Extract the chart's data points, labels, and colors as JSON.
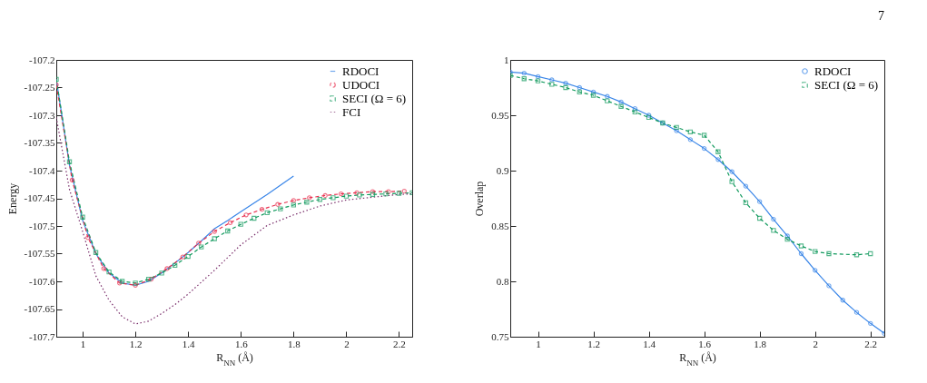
{
  "chart_data": [
    {
      "type": "line",
      "xlabel": "R$_{NN}$ (Å)",
      "ylabel": "Energy",
      "xlim": [
        0.9,
        2.25
      ],
      "ylim": [
        -107.7,
        -107.2
      ],
      "xticks": [
        1,
        1.2,
        1.4,
        1.6,
        1.8,
        2,
        2.2
      ],
      "yticks": [
        -107.7,
        -107.65,
        -107.6,
        -107.55,
        -107.5,
        -107.45,
        -107.4,
        -107.35,
        -107.3,
        -107.25,
        -107.2
      ],
      "grid": false,
      "legend": "top right",
      "series": [
        {
          "name": "RDOCI",
          "color": "#3a86e8",
          "marker": "none",
          "line_style": "solid",
          "x": [
            0.9,
            0.95,
            1.0,
            1.05,
            1.1,
            1.15,
            1.2,
            1.25,
            1.3,
            1.35,
            1.4,
            1.45,
            1.5,
            1.55,
            1.6,
            1.7,
            1.8
          ],
          "values": [
            -107.235,
            -107.39,
            -107.49,
            -107.55,
            -107.585,
            -107.603,
            -107.607,
            -107.6,
            -107.585,
            -107.567,
            -107.548,
            -107.527,
            -107.505,
            -107.49,
            -107.474,
            -107.443,
            -107.41
          ]
        },
        {
          "name": "UDOCI",
          "color": "#e8304f",
          "marker": "circle",
          "line_style": "dashed",
          "x": [
            0.9,
            0.96,
            1.02,
            1.08,
            1.14,
            1.2,
            1.26,
            1.32,
            1.38,
            1.44,
            1.5,
            1.56,
            1.62,
            1.68,
            1.74,
            1.8,
            1.86,
            1.92,
            1.98,
            2.04,
            2.1,
            2.16,
            2.22
          ],
          "values": [
            -107.245,
            -107.417,
            -107.521,
            -107.577,
            -107.603,
            -107.607,
            -107.596,
            -107.577,
            -107.556,
            -107.531,
            -107.51,
            -107.494,
            -107.48,
            -107.47,
            -107.461,
            -107.454,
            -107.449,
            -107.445,
            -107.442,
            -107.44,
            -107.438,
            -107.438,
            -107.437
          ]
        },
        {
          "name": "SECI (Ω = 6)",
          "color": "#129a5e",
          "marker": "square",
          "line_style": "dashed",
          "x": [
            0.9,
            0.95,
            1.0,
            1.05,
            1.1,
            1.15,
            1.2,
            1.25,
            1.3,
            1.35,
            1.4,
            1.45,
            1.5,
            1.55,
            1.6,
            1.65,
            1.7,
            1.75,
            1.8,
            1.85,
            1.9,
            1.95,
            2.0,
            2.05,
            2.1,
            2.15,
            2.2,
            2.25
          ],
          "values": [
            -107.235,
            -107.384,
            -107.484,
            -107.548,
            -107.583,
            -107.6,
            -107.603,
            -107.596,
            -107.585,
            -107.571,
            -107.555,
            -107.538,
            -107.523,
            -107.509,
            -107.497,
            -107.486,
            -107.476,
            -107.469,
            -107.462,
            -107.457,
            -107.452,
            -107.449,
            -107.446,
            -107.444,
            -107.443,
            -107.442,
            -107.441,
            -107.44
          ]
        },
        {
          "name": "FCI",
          "color": "#7a2e6b",
          "marker": "none",
          "line_style": "dotted",
          "x": [
            0.9,
            0.95,
            1.0,
            1.05,
            1.1,
            1.15,
            1.2,
            1.25,
            1.3,
            1.35,
            1.4,
            1.5,
            1.6,
            1.7,
            1.8,
            1.9,
            2.0,
            2.1,
            2.2,
            2.25
          ],
          "values": [
            -107.304,
            -107.434,
            -107.51,
            -107.59,
            -107.634,
            -107.664,
            -107.677,
            -107.672,
            -107.658,
            -107.642,
            -107.623,
            -107.58,
            -107.534,
            -107.499,
            -107.48,
            -107.464,
            -107.453,
            -107.448,
            -107.443,
            -107.442
          ]
        }
      ]
    },
    {
      "type": "line",
      "xlabel": "R$_{NN}$ (Å)",
      "ylabel": "Overlap",
      "xlim": [
        0.9,
        2.25
      ],
      "ylim": [
        0.75,
        1
      ],
      "xticks": [
        1,
        1.2,
        1.4,
        1.6,
        1.8,
        2,
        2.2
      ],
      "yticks": [
        0.75,
        0.8,
        0.85,
        0.9,
        0.95,
        1
      ],
      "grid": false,
      "legend": "top right",
      "annotations": [
        "7"
      ],
      "series": [
        {
          "name": "RDOCI",
          "color": "#3a86e8",
          "marker": "circle",
          "line_style": "solid",
          "x": [
            0.9,
            0.95,
            1.0,
            1.05,
            1.1,
            1.15,
            1.2,
            1.25,
            1.3,
            1.35,
            1.4,
            1.45,
            1.5,
            1.55,
            1.6,
            1.65,
            1.7,
            1.75,
            1.8,
            1.85,
            1.9,
            1.95,
            2.0,
            2.05,
            2.1,
            2.15,
            2.2,
            2.25
          ],
          "values": [
            0.989,
            0.988,
            0.985,
            0.982,
            0.979,
            0.975,
            0.971,
            0.967,
            0.962,
            0.956,
            0.95,
            0.943,
            0.936,
            0.928,
            0.92,
            0.91,
            0.899,
            0.886,
            0.872,
            0.856,
            0.841,
            0.825,
            0.81,
            0.796,
            0.783,
            0.772,
            0.762,
            0.753
          ]
        },
        {
          "name": "SECI (Ω = 6)",
          "color": "#129a5e",
          "marker": "square",
          "line_style": "dashed",
          "x": [
            0.9,
            0.95,
            1.0,
            1.05,
            1.1,
            1.15,
            1.2,
            1.25,
            1.3,
            1.35,
            1.4,
            1.45,
            1.5,
            1.55,
            1.6,
            1.65,
            1.7,
            1.75,
            1.8,
            1.85,
            1.9,
            1.95,
            2.0,
            2.05,
            2.15,
            2.2
          ],
          "values": [
            0.986,
            0.983,
            0.981,
            0.978,
            0.975,
            0.971,
            0.968,
            0.963,
            0.958,
            0.953,
            0.948,
            0.943,
            0.939,
            0.935,
            0.932,
            0.917,
            0.89,
            0.871,
            0.857,
            0.846,
            0.838,
            0.832,
            0.827,
            0.825,
            0.824,
            0.825
          ]
        }
      ]
    }
  ]
}
